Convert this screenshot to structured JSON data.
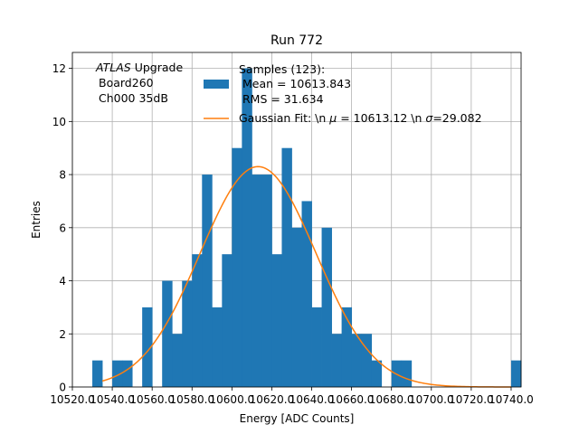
{
  "chart_data": {
    "type": "bar",
    "title": "Run 772",
    "xlabel": "Energy [ADC Counts]",
    "ylabel": "Entries",
    "xlim": [
      10520.0,
      10745.0
    ],
    "ylim": [
      0,
      12.6
    ],
    "grid": true,
    "legend_position": "top-right",
    "annotation": {
      "line1_italic": "ATLAS",
      "line1_rest": " Upgrade",
      "line2": "Board260",
      "line3": "Ch000 35dB"
    },
    "x_ticks": [
      10520.0,
      10540.0,
      10560.0,
      10580.0,
      10600.0,
      10620.0,
      10640.0,
      10660.0,
      10680.0,
      10700.0,
      10720.0,
      10740.0
    ],
    "x_tick_labels": [
      "10520.0",
      "10540.0",
      "10560.0",
      "10580.0",
      "10600.0",
      "10620.0",
      "10640.0",
      "10660.0",
      "10680.0",
      "10700.0",
      "10720.0",
      "10740.0"
    ],
    "y_ticks": [
      0,
      2,
      4,
      6,
      8,
      10,
      12
    ],
    "y_tick_labels": [
      "0",
      "2",
      "4",
      "6",
      "8",
      "10",
      "12"
    ],
    "bin_edges_start": 10530.0,
    "bin_width": 5.0,
    "histogram_counts": [
      1,
      0,
      1,
      1,
      0,
      3,
      0,
      4,
      2,
      4,
      5,
      8,
      3,
      5,
      9,
      12,
      8,
      8,
      5,
      9,
      6,
      7,
      3,
      6,
      2,
      3,
      2,
      2,
      1,
      0,
      1,
      1,
      0,
      0,
      0,
      0,
      0,
      0,
      0,
      0,
      0,
      0,
      1
    ],
    "gaussian_fit": {
      "mean": 10613.12,
      "sigma": 29.082,
      "amplitude": 8.3
    },
    "fit_curve_range": [
      10535.0,
      10740.0
    ],
    "series": [
      {
        "name": "Samples (123):\n Mean = 10613.843\n RMS = 31.634",
        "color": "#1f77b4"
      },
      {
        "name": "Gaussian Fit: \\n $\\mu$ = 10613.12 \\n $\\sigma$=29.082",
        "color": "#ff7f0e"
      }
    ],
    "legend": {
      "samples_line1": "Samples (123):",
      "samples_line2": " Mean = 10613.843",
      "samples_line3": " RMS = 31.634",
      "fit_part1": "Gaussian Fit: \\n ",
      "fit_mu": "μ",
      "fit_part2": " = 10613.12 \\n ",
      "fit_sigma": "σ",
      "fit_part3": "=29.082"
    }
  },
  "colors": {
    "bar": "#1f77b4",
    "fit": "#ff7f0e",
    "grid": "#b0b0b0",
    "axis": "#000000"
  }
}
